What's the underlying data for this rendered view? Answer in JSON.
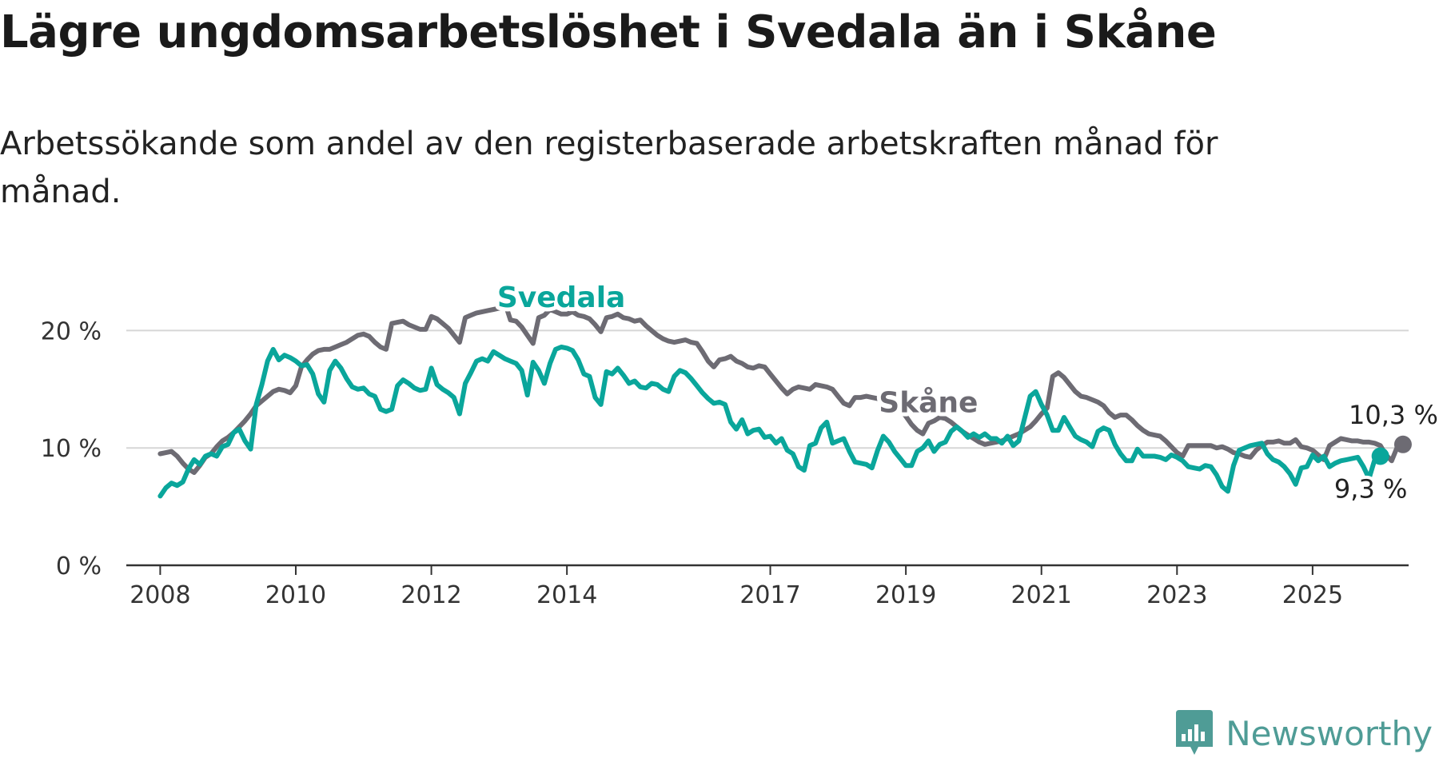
{
  "header": {
    "title": "Lägre ungdomsarbetslöshet i Svedala än i Skåne",
    "subtitle": "Arbetssökande som andel av den registerbaserade arbetskraften månad för månad."
  },
  "brand": {
    "name": "Newsworthy",
    "icon": "newsworthy-logo-icon",
    "color": "#4f9c96"
  },
  "chart_data": {
    "type": "line",
    "x_start": "2008-01",
    "x_frequency": "monthly",
    "x_tick_labels": [
      "2008",
      "2010",
      "2012",
      "2014",
      "2017",
      "2019",
      "2021",
      "2023",
      "2025"
    ],
    "x_tick_years": [
      2008,
      2010,
      2012,
      2014,
      2017,
      2019,
      2021,
      2023,
      2025
    ],
    "x_range": [
      "2007-07",
      "2026-06"
    ],
    "ylim": [
      0,
      25
    ],
    "y_ticks": [
      0,
      10,
      20
    ],
    "y_tick_labels": [
      "0 %",
      "10 %",
      "20 %"
    ],
    "grid": true,
    "series": [
      {
        "name": "Skåne",
        "color": "#6d6b73",
        "end_label": "10,3 %",
        "values": [
          9.5,
          9.6,
          9.7,
          9.3,
          8.7,
          8.2,
          7.9,
          8.5,
          9.2,
          9.5,
          10.1,
          10.6,
          10.9,
          11.3,
          11.8,
          12.3,
          12.9,
          13.6,
          14.0,
          14.4,
          14.8,
          15.0,
          14.9,
          14.7,
          15.3,
          16.9,
          17.5,
          18.0,
          18.3,
          18.4,
          18.4,
          18.6,
          18.8,
          19.0,
          19.3,
          19.6,
          19.7,
          19.5,
          19.0,
          18.6,
          18.4,
          20.6,
          20.7,
          20.8,
          20.5,
          20.3,
          20.1,
          20.1,
          21.2,
          21.0,
          20.6,
          20.2,
          19.6,
          19.0,
          21.1,
          21.3,
          21.5,
          21.6,
          21.7,
          21.8,
          21.9,
          22.4,
          20.9,
          20.8,
          20.3,
          19.6,
          18.9,
          21.1,
          21.3,
          21.8,
          21.6,
          21.4,
          21.4,
          21.6,
          21.3,
          21.2,
          21.0,
          20.5,
          19.9,
          21.1,
          21.2,
          21.4,
          21.1,
          21.0,
          20.8,
          20.9,
          20.4,
          20.0,
          19.6,
          19.3,
          19.1,
          19.0,
          19.1,
          19.2,
          19.0,
          18.9,
          18.2,
          17.4,
          16.9,
          17.5,
          17.6,
          17.8,
          17.4,
          17.2,
          16.9,
          16.8,
          17.0,
          16.9,
          16.3,
          15.7,
          15.1,
          14.6,
          15.0,
          15.2,
          15.1,
          15.0,
          15.4,
          15.3,
          15.2,
          15.0,
          14.4,
          13.8,
          13.6,
          14.3,
          14.3,
          14.4,
          14.3,
          14.2,
          14.2,
          14.1,
          13.8,
          13.2,
          12.7,
          12.0,
          11.5,
          11.2,
          12.1,
          12.3,
          12.6,
          12.5,
          12.2,
          11.8,
          11.4,
          11.1,
          10.8,
          10.5,
          10.3,
          10.4,
          10.5,
          10.6,
          10.8,
          11.0,
          11.2,
          11.5,
          11.8,
          12.3,
          12.9,
          13.4,
          16.1,
          16.4,
          16.0,
          15.4,
          14.8,
          14.4,
          14.3,
          14.1,
          13.9,
          13.6,
          13.0,
          12.6,
          12.8,
          12.8,
          12.4,
          11.9,
          11.5,
          11.2,
          11.1,
          11.0,
          10.6,
          10.1,
          9.6,
          9.3,
          10.2,
          10.2,
          10.2,
          10.2,
          10.2,
          10.0,
          10.1,
          9.9,
          9.6,
          9.5,
          9.3,
          9.2,
          9.8,
          10.2,
          10.5,
          10.5,
          10.6,
          10.4,
          10.4,
          10.7,
          10.1,
          10.0,
          9.8,
          9.4,
          9.0,
          10.2,
          10.5,
          10.8,
          10.7,
          10.6,
          10.6,
          10.5,
          10.5,
          10.4,
          10.2,
          9.4,
          8.9,
          10.1,
          10.3
        ]
      },
      {
        "name": "Svedala",
        "color": "#0aa69b",
        "end_label": "9,3 %",
        "values": [
          5.9,
          6.6,
          7.0,
          6.8,
          7.1,
          8.2,
          9.0,
          8.6,
          9.3,
          9.5,
          9.3,
          10.1,
          10.3,
          11.3,
          11.6,
          10.6,
          9.9,
          13.7,
          15.4,
          17.4,
          18.4,
          17.5,
          17.9,
          17.7,
          17.4,
          17.0,
          17.1,
          16.3,
          14.6,
          13.9,
          16.6,
          17.4,
          16.8,
          15.9,
          15.2,
          15.0,
          15.1,
          14.6,
          14.4,
          13.3,
          13.1,
          13.3,
          15.3,
          15.8,
          15.5,
          15.1,
          14.9,
          15.0,
          16.8,
          15.4,
          15.0,
          14.7,
          14.3,
          12.9,
          15.5,
          16.4,
          17.4,
          17.6,
          17.4,
          18.2,
          17.9,
          17.6,
          17.4,
          17.2,
          16.6,
          14.5,
          17.3,
          16.6,
          15.5,
          17.2,
          18.4,
          18.6,
          18.5,
          18.3,
          17.5,
          16.3,
          16.1,
          14.3,
          13.7,
          16.5,
          16.3,
          16.8,
          16.2,
          15.5,
          15.7,
          15.2,
          15.1,
          15.5,
          15.4,
          15.0,
          14.8,
          16.1,
          16.6,
          16.4,
          15.9,
          15.3,
          14.7,
          14.2,
          13.8,
          13.9,
          13.7,
          12.2,
          11.6,
          12.4,
          11.2,
          11.5,
          11.6,
          10.9,
          11.0,
          10.4,
          10.8,
          9.8,
          9.5,
          8.4,
          8.1,
          10.2,
          10.4,
          11.7,
          12.2,
          10.4,
          10.6,
          10.8,
          9.7,
          8.8,
          8.7,
          8.6,
          8.3,
          9.8,
          11.0,
          10.5,
          9.7,
          9.1,
          8.5,
          8.5,
          9.7,
          10.0,
          10.6,
          9.7,
          10.3,
          10.5,
          11.4,
          11.8,
          11.4,
          10.9,
          11.2,
          10.9,
          11.2,
          10.8,
          10.8,
          10.4,
          11.0,
          10.2,
          10.6,
          12.5,
          14.4,
          14.8,
          13.7,
          12.8,
          11.5,
          11.5,
          12.6,
          11.8,
          11.0,
          10.7,
          10.5,
          10.1,
          11.4,
          11.7,
          11.5,
          10.3,
          9.5,
          8.9,
          8.9,
          9.9,
          9.3,
          9.3,
          9.3,
          9.2,
          9.0,
          9.4,
          9.2,
          8.9,
          8.4,
          8.3,
          8.2,
          8.5,
          8.4,
          7.7,
          6.7,
          6.3,
          8.5,
          9.8,
          10.0,
          10.2,
          10.3,
          10.4,
          9.5,
          9.0,
          8.8,
          8.4,
          7.8,
          6.9,
          8.3,
          8.4,
          9.4,
          8.9,
          9.3,
          8.4,
          8.7,
          8.9,
          9.0,
          9.1,
          9.2,
          8.4,
          7.4,
          9.0,
          9.3
        ]
      }
    ]
  }
}
